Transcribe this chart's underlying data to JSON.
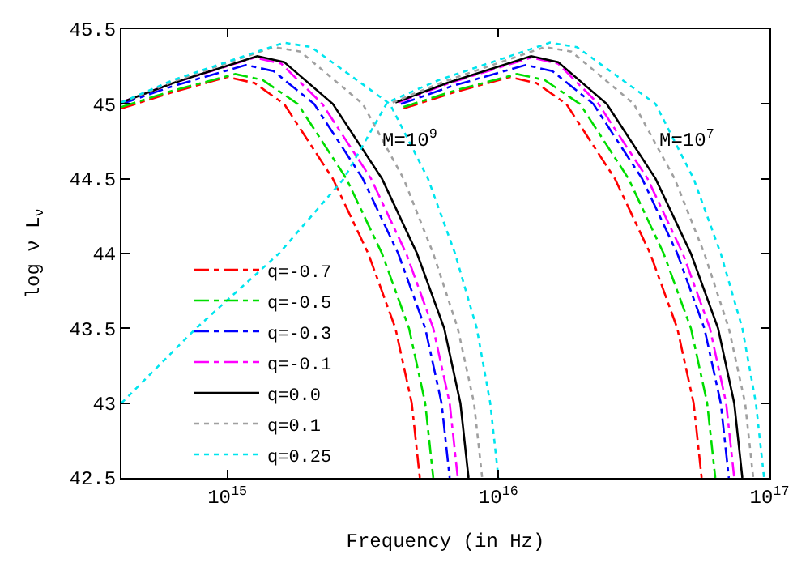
{
  "chart_data": {
    "type": "line",
    "xlabel": "Frequency (in Hz)",
    "ylabel": "log ν L$_{ν}$",
    "log": "x",
    "grid": false,
    "legend": "bottom left",
    "marker": "none",
    "xlim": [
      407000000000000.0,
      1e+17
    ],
    "xticks": [
      {
        "value": 1000000000000000.0,
        "label": "10$^{15}$"
      },
      {
        "value": 1e+16,
        "label": "10$^{16}$"
      },
      {
        "value": 1e+17,
        "label": "10$^{17}$"
      }
    ],
    "ylim": [
      42.5,
      45.5
    ],
    "yticks": [
      42.5,
      43,
      43.5,
      44,
      44.5,
      45,
      45.5
    ],
    "annotations": [
      "M=10$^{9}$",
      "M=10$^{7}$"
    ],
    "series": [
      {
        "name": "q=-0.7",
        "color": "#ff0000",
        "line_style": "dashdot",
        "x": [
          407000000000000.0,
          631000000000000.0,
          1000000000000000.0,
          1260000000000000.0,
          1620000000000000.0,
          2450000000000000.0,
          3310000000000000.0,
          4170000000000000.0,
          4790000000000000.0,
          5130000000000000.0
        ],
        "values": [
          44.97,
          45.08,
          45.18,
          45.14,
          45.0,
          44.5,
          44.0,
          43.5,
          43.0,
          42.5
        ]
      },
      {
        "name": "q=-0.5",
        "color": "#00dd00",
        "line_style": "dashdot",
        "x": [
          407000000000000.0,
          631000000000000.0,
          1070000000000000.0,
          1350000000000000.0,
          1820000000000000.0,
          2750000000000000.0,
          3720000000000000.0,
          4680000000000000.0,
          5370000000000000.0,
          5750000000000000.0
        ],
        "values": [
          44.98,
          45.09,
          45.2,
          45.16,
          45.0,
          44.5,
          44.0,
          43.5,
          43.0,
          42.5
        ]
      },
      {
        "name": "q=-0.3",
        "color": "#0000ff",
        "line_style": "dashdot",
        "x": [
          407000000000000.0,
          631000000000000.0,
          1170000000000000.0,
          1480000000000000.0,
          2090000000000000.0,
          3160000000000000.0,
          4270000000000000.0,
          5370000000000000.0,
          6170000000000000.0,
          6610000000000000.0
        ],
        "values": [
          45.0,
          45.12,
          45.26,
          45.22,
          45.0,
          44.5,
          44.0,
          43.5,
          43.0,
          42.5
        ]
      },
      {
        "name": "q=-0.1",
        "color": "#ff00ff",
        "line_style": "dashdot",
        "x": [
          407000000000000.0,
          631000000000000.0,
          1260000000000000.0,
          1580000000000000.0,
          2240000000000000.0,
          3390000000000000.0,
          4570000000000000.0,
          5750000000000000.0,
          6610000000000000.0,
          7080000000000000.0
        ],
        "values": [
          45.01,
          45.14,
          45.31,
          45.27,
          45.0,
          44.5,
          44.0,
          43.5,
          43.0,
          42.5
        ]
      },
      {
        "name": "q=0.0",
        "color": "#000000",
        "line_style": "solid",
        "x": [
          407000000000000.0,
          631000000000000.0,
          1290000000000000.0,
          1620000000000000.0,
          2450000000000000.0,
          3720000000000000.0,
          5010000000000000.0,
          6310000000000000.0,
          7240000000000000.0,
          7760000000000000.0
        ],
        "values": [
          45.01,
          45.14,
          45.32,
          45.28,
          45.0,
          44.5,
          44.0,
          43.5,
          43.0,
          42.5
        ]
      },
      {
        "name": "q=0.1",
        "color": "#a0a0a0",
        "line_style": "dotted",
        "x": [
          407000000000000.0,
          631000000000000.0,
          1480000000000000.0,
          1860000000000000.0,
          3160000000000000.0,
          4470000000000000.0,
          5750000000000000.0,
          7080000000000000.0,
          8130000000000000.0,
          8710000000000000.0
        ],
        "values": [
          45.01,
          45.15,
          45.38,
          45.35,
          45.0,
          44.5,
          44.0,
          43.5,
          43.0,
          42.5
        ]
      },
      {
        "name": "q=0.25",
        "color": "#00e5ee",
        "line_style": "dotted",
        "x": [
          407000000000000.0,
          631000000000000.0,
          1620000000000000.0,
          2040000000000000.0,
          3980000000000000.0,
          5500000000000000.0,
          6920000000000000.0,
          8320000000000000.0,
          9330000000000000.0,
          1e+16
        ],
        "values": [
          45.01,
          45.16,
          45.41,
          45.38,
          45.0,
          44.5,
          44.0,
          43.5,
          43.0,
          42.5
        ]
      },
      {
        "color": "#ff0000",
        "line_style": "dashdot",
        "x": [
          4470000000000000.0,
          6920000000000000.0,
          1.1e+16,
          1.38e+16,
          1.78e+16,
          2.69e+16,
          3.63e+16,
          4.57e+16,
          5.25e+16,
          5.62e+16
        ],
        "values": [
          44.97,
          45.08,
          45.18,
          45.14,
          45.0,
          44.5,
          44.0,
          43.5,
          43.0,
          42.5
        ]
      },
      {
        "color": "#00dd00",
        "line_style": "dashdot",
        "x": [
          4470000000000000.0,
          6920000000000000.0,
          1.17e+16,
          1.48e+16,
          2e+16,
          3.02e+16,
          4.07e+16,
          5.13e+16,
          5.89e+16,
          6.31e+16
        ],
        "values": [
          44.98,
          45.09,
          45.2,
          45.16,
          45.0,
          44.5,
          44.0,
          43.5,
          43.0,
          42.5
        ]
      },
      {
        "color": "#0000ff",
        "line_style": "dashdot",
        "x": [
          4370000000000000.0,
          6760000000000000.0,
          1.26e+16,
          1.58e+16,
          2.24e+16,
          3.39e+16,
          4.57e+16,
          5.75e+16,
          6.61e+16,
          7.08e+16
        ],
        "values": [
          45.0,
          45.12,
          45.26,
          45.22,
          45.0,
          44.5,
          44.0,
          43.5,
          43.0,
          42.5
        ]
      },
      {
        "color": "#ff00ff",
        "line_style": "dashdot",
        "x": [
          4270000000000000.0,
          6610000000000000.0,
          1.32e+16,
          1.66e+16,
          2.34e+16,
          3.55e+16,
          4.79e+16,
          6.03e+16,
          6.92e+16,
          7.41e+16
        ],
        "values": [
          45.01,
          45.14,
          45.31,
          45.27,
          45.0,
          44.5,
          44.0,
          43.5,
          43.0,
          42.5
        ]
      },
      {
        "color": "#000000",
        "line_style": "solid",
        "x": [
          4170000000000000.0,
          6460000000000000.0,
          1.32e+16,
          1.66e+16,
          2.51e+16,
          3.8e+16,
          5.13e+16,
          6.46e+16,
          7.41e+16,
          7.94e+16
        ],
        "values": [
          45.01,
          45.14,
          45.32,
          45.28,
          45.0,
          44.5,
          44.0,
          43.5,
          43.0,
          42.5
        ]
      },
      {
        "color": "#a0a0a0",
        "line_style": "dotted",
        "x": [
          4070000000000000.0,
          6310000000000000.0,
          1.48e+16,
          1.86e+16,
          3.16e+16,
          4.47e+16,
          5.75e+16,
          7.08e+16,
          8.13e+16,
          8.71e+16
        ],
        "values": [
          45.01,
          45.15,
          45.38,
          45.35,
          45.0,
          44.5,
          44.0,
          43.5,
          43.0,
          42.5
        ]
      },
      {
        "color": "#00e5ee",
        "line_style": "dotted",
        "x": [
          407000000000000.0,
          767000000000000.0,
          1550000000000000.0,
          2690000000000000.0,
          3890000000000000.0,
          6030000000000000.0,
          1.55e+16,
          1.95e+16,
          3.8e+16,
          5.25e+16,
          6.61e+16,
          7.94e+16,
          8.91e+16,
          9.55e+16
        ],
        "values": [
          43.0,
          43.5,
          44.0,
          44.5,
          45.01,
          45.16,
          45.41,
          45.38,
          45.0,
          44.5,
          44.0,
          43.5,
          43.0,
          42.5
        ]
      }
    ]
  }
}
